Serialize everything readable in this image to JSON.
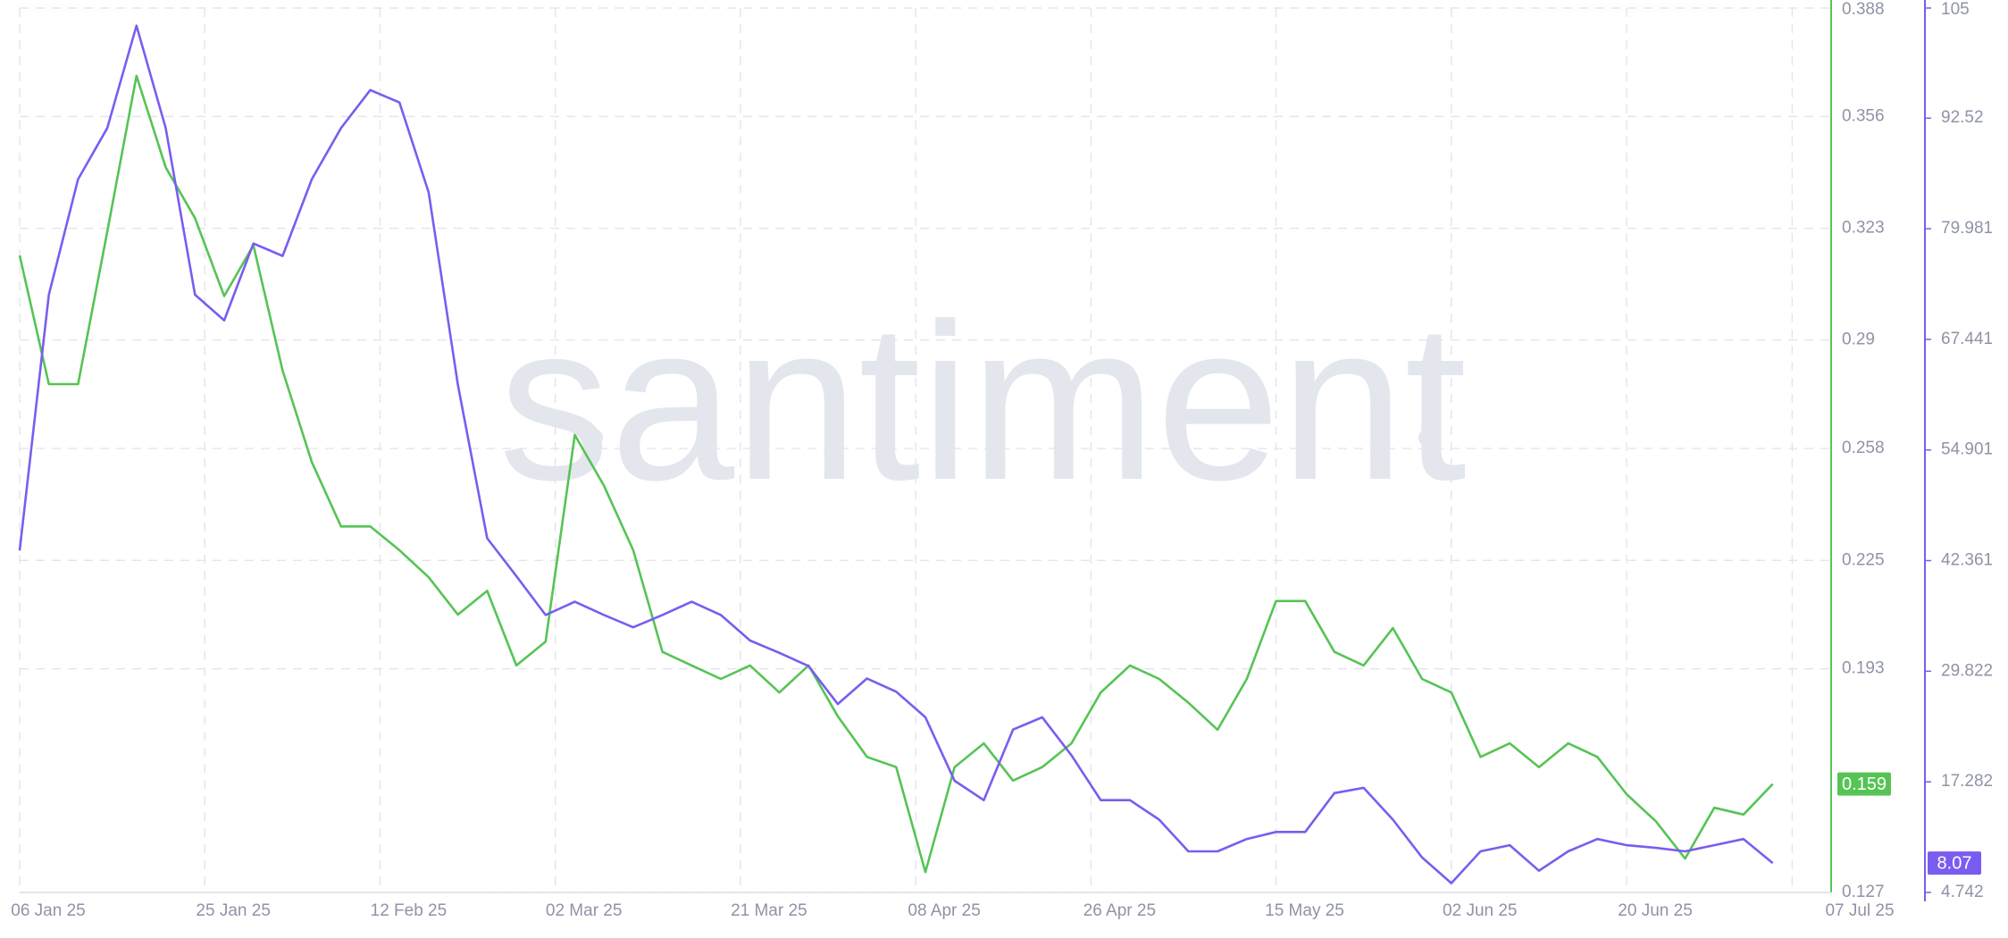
{
  "chart_data": {
    "type": "line",
    "watermark": "santiment",
    "x": [
      "2025-01-06",
      "2025-01-09",
      "2025-01-12",
      "2025-01-15",
      "2025-01-18",
      "2025-01-21",
      "2025-01-24",
      "2025-01-27",
      "2025-01-30",
      "2025-02-02",
      "2025-02-05",
      "2025-02-08",
      "2025-02-11",
      "2025-02-14",
      "2025-02-17",
      "2025-02-20",
      "2025-02-23",
      "2025-02-26",
      "2025-03-01",
      "2025-03-04",
      "2025-03-07",
      "2025-03-10",
      "2025-03-13",
      "2025-03-16",
      "2025-03-19",
      "2025-03-22",
      "2025-03-25",
      "2025-03-28",
      "2025-03-31",
      "2025-04-03",
      "2025-04-06",
      "2025-04-09",
      "2025-04-12",
      "2025-04-15",
      "2025-04-18",
      "2025-04-21",
      "2025-04-24",
      "2025-04-27",
      "2025-04-30",
      "2025-05-03",
      "2025-05-06",
      "2025-05-09",
      "2025-05-12",
      "2025-05-15",
      "2025-05-18",
      "2025-05-21",
      "2025-05-24",
      "2025-05-27",
      "2025-05-30",
      "2025-06-02",
      "2025-06-05",
      "2025-06-08",
      "2025-06-11",
      "2025-06-14",
      "2025-06-17",
      "2025-06-20",
      "2025-06-23",
      "2025-06-26",
      "2025-06-29",
      "2025-07-02",
      "2025-07-05"
    ],
    "xlim": [
      "2025-01-06",
      "2025-07-11"
    ],
    "xticks": [
      {
        "value": "2025-01-06",
        "label": "06 Jan 25"
      },
      {
        "value": "2025-01-25",
        "label": "25 Jan 25"
      },
      {
        "value": "2025-02-12",
        "label": "12 Feb 25"
      },
      {
        "value": "2025-03-02",
        "label": "02 Mar 25"
      },
      {
        "value": "2025-03-21",
        "label": "21 Mar 25"
      },
      {
        "value": "2025-04-08",
        "label": "08 Apr 25"
      },
      {
        "value": "2025-04-26",
        "label": "26 Apr 25"
      },
      {
        "value": "2025-05-15",
        "label": "15 May 25"
      },
      {
        "value": "2025-06-02",
        "label": "02 Jun 25"
      },
      {
        "value": "2025-06-20",
        "label": "20 Jun 25"
      },
      {
        "value": "2025-07-07",
        "label": "07 Jul 25"
      }
    ],
    "ylim": [
      0.127,
      0.388
    ],
    "yticks": [
      0.127,
      0.193,
      0.225,
      0.258,
      0.29,
      0.323,
      0.356,
      0.388
    ],
    "y2lim": [
      4.742,
      105
    ],
    "y2ticks": [
      4.742,
      17.282,
      29.822,
      42.361,
      54.901,
      67.441,
      79.981,
      92.52,
      105
    ],
    "grid": true,
    "series": [
      {
        "color": "#55c455",
        "values": [
          0.315,
          0.277,
          0.277,
          0.322,
          0.368,
          0.341,
          0.326,
          0.303,
          0.318,
          0.281,
          0.254,
          0.235,
          0.235,
          0.228,
          0.22,
          0.209,
          0.216,
          0.194,
          0.201,
          0.262,
          0.247,
          0.228,
          0.198,
          0.194,
          0.19,
          0.194,
          0.186,
          0.194,
          0.179,
          0.167,
          0.164,
          0.133,
          0.164,
          0.171,
          0.16,
          0.164,
          0.171,
          0.186,
          0.194,
          0.19,
          0.183,
          0.175,
          0.19,
          0.213,
          0.213,
          0.198,
          0.194,
          0.205,
          0.19,
          0.186,
          0.167,
          0.171,
          0.164,
          0.171,
          0.167,
          0.156,
          0.148,
          0.137,
          0.152,
          0.15,
          0.159
        ]
      },
      {
        "color": "#7b5cf0",
        "axis": "y2",
        "values": [
          43.5,
          72.5,
          85.6,
          91.4,
          103,
          91.4,
          72.5,
          69.6,
          78.3,
          76.9,
          85.6,
          91.4,
          95.7,
          94.3,
          84.1,
          62.3,
          44.9,
          40.6,
          36.2,
          37.7,
          36.2,
          34.8,
          36.2,
          37.7,
          36.2,
          33.3,
          31.9,
          30.4,
          26.1,
          29.0,
          27.5,
          24.6,
          17.4,
          15.2,
          23.2,
          24.6,
          20.3,
          15.2,
          15.2,
          13.0,
          9.4,
          9.4,
          10.8,
          11.6,
          11.6,
          16.0,
          16.6,
          13.0,
          8.7,
          5.8,
          9.4,
          10.1,
          7.2,
          9.4,
          10.8,
          10.1,
          9.8,
          9.4,
          10.1,
          10.8,
          8.07
        ]
      }
    ]
  }
}
